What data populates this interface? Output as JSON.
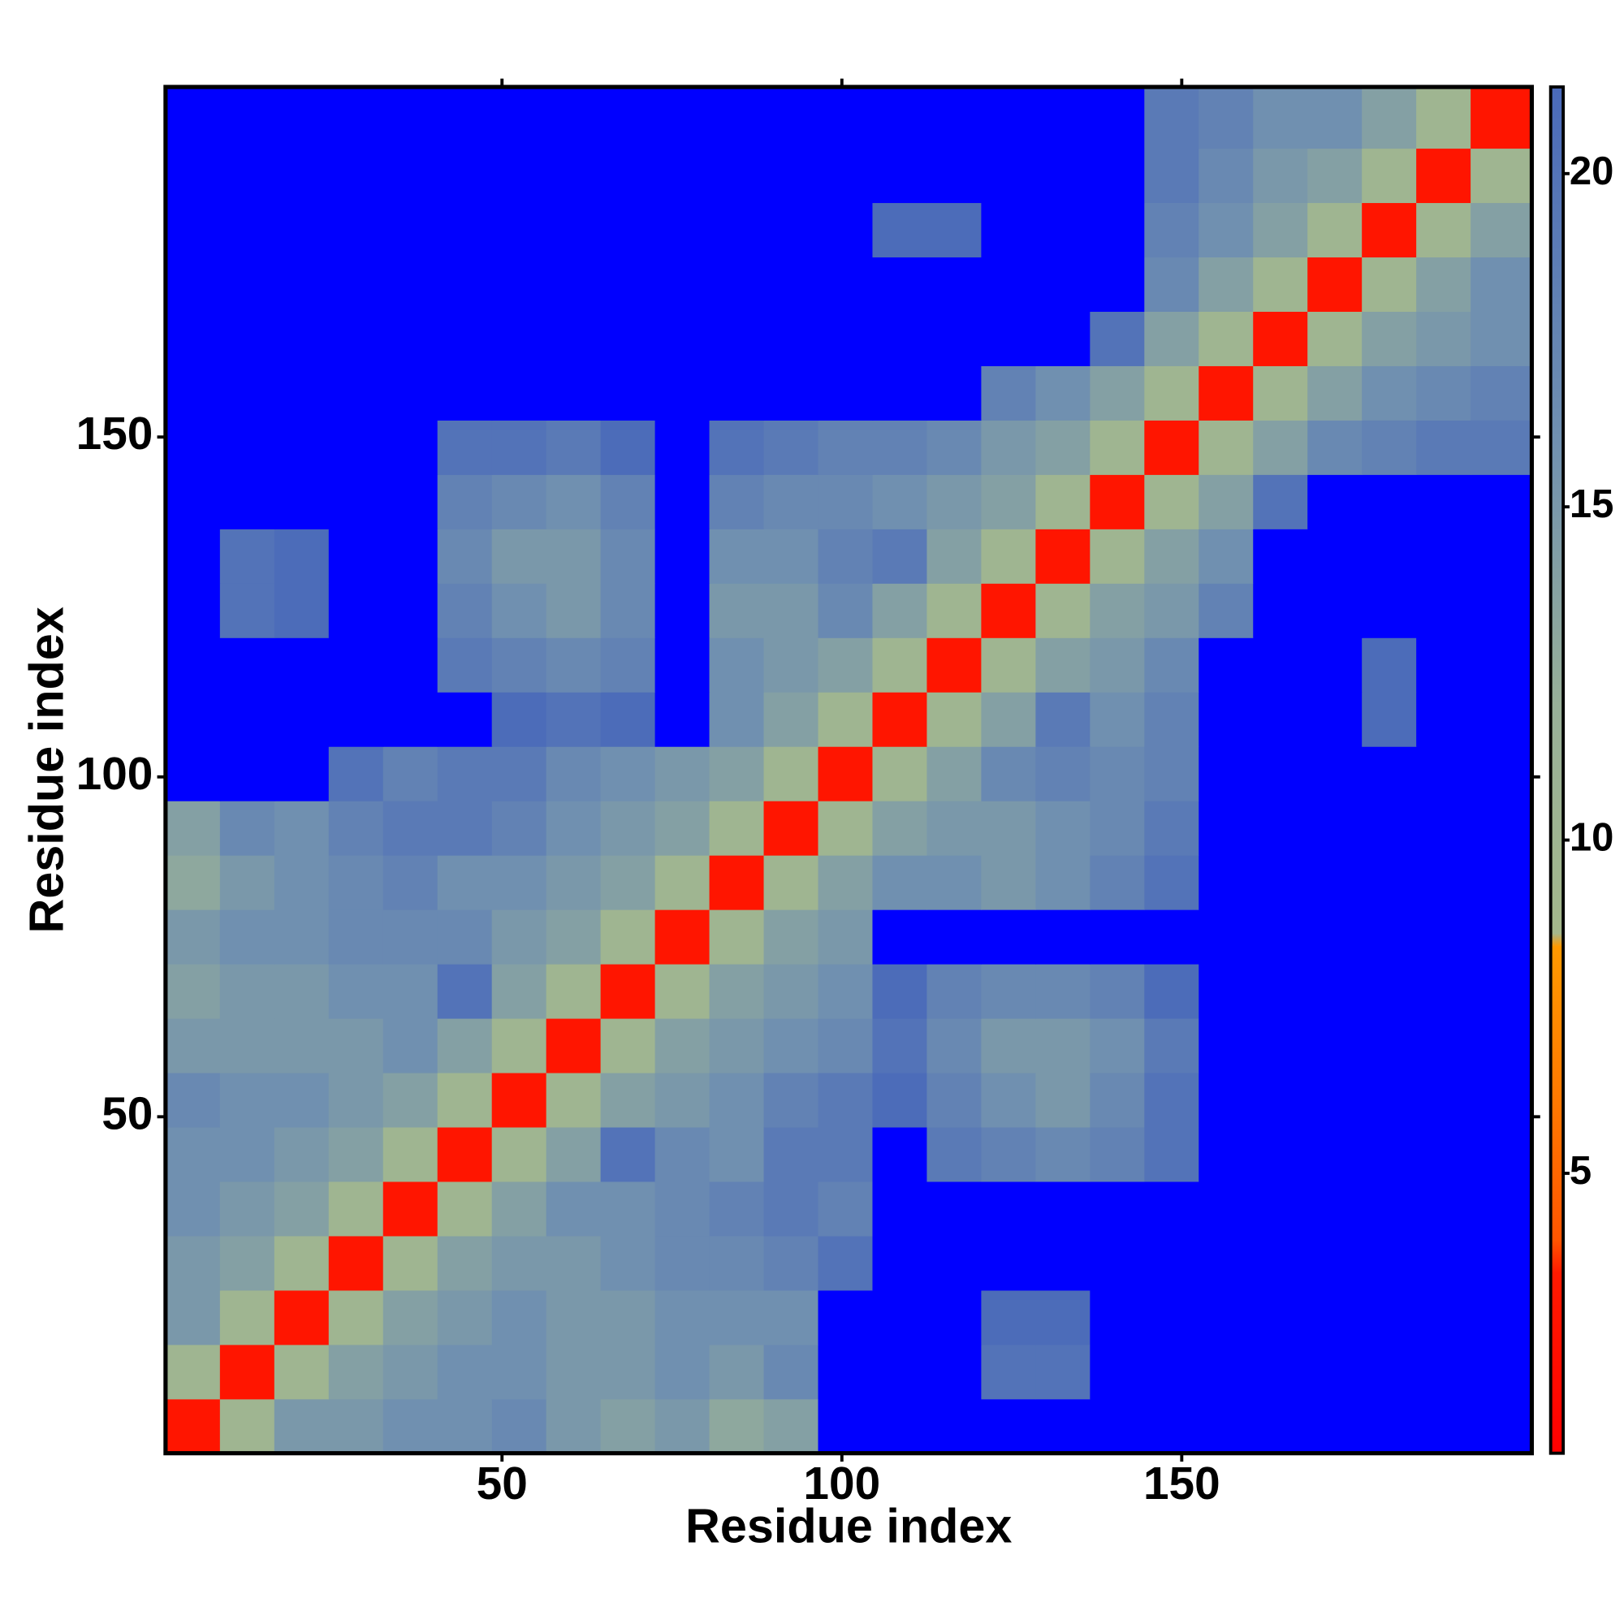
{
  "chart_data": {
    "type": "heatmap",
    "x_label": "Residue index",
    "y_label": "Residue index",
    "xlim": [
      0.5,
      201.5
    ],
    "ylim": [
      0.5,
      201.5
    ],
    "xticks": [
      50,
      100,
      150
    ],
    "yticks": [
      50,
      100,
      150
    ],
    "bin_edges": [
      0.5,
      8.5,
      16.5,
      24.5,
      32.5,
      40.5,
      48.5,
      56.5,
      64.5,
      72.5,
      80.5,
      88.5,
      96.5,
      104.5,
      112.5,
      120.5,
      128.5,
      136.5,
      144.5,
      152.5,
      160.5,
      168.5,
      176.5,
      184.5,
      192.5,
      201.5
    ],
    "values": [
      [
        3,
        10,
        15,
        15,
        16,
        16,
        17,
        15,
        14,
        15,
        13,
        14,
        25,
        25,
        25,
        25,
        25,
        25,
        25,
        25,
        25,
        25,
        25,
        25,
        25
      ],
      [
        10,
        3,
        10,
        14,
        15,
        16,
        16,
        15,
        15,
        16,
        15,
        17,
        25,
        25,
        25,
        20,
        20,
        25,
        25,
        25,
        25,
        25,
        25,
        25,
        25
      ],
      [
        15,
        10,
        3,
        10,
        14,
        15,
        16,
        15,
        15,
        16,
        16,
        16,
        25,
        25,
        25,
        21,
        21,
        25,
        25,
        25,
        25,
        25,
        25,
        25,
        25
      ],
      [
        15,
        14,
        10,
        3,
        10,
        14,
        15,
        15,
        16,
        17,
        17,
        18,
        20,
        25,
        25,
        25,
        25,
        25,
        25,
        25,
        25,
        25,
        25,
        25,
        25
      ],
      [
        16,
        15,
        14,
        10,
        3,
        10,
        14,
        16,
        16,
        17,
        18,
        19,
        18,
        25,
        25,
        25,
        25,
        25,
        25,
        25,
        25,
        25,
        25,
        25,
        25
      ],
      [
        16,
        16,
        15,
        14,
        10,
        3,
        10,
        14,
        20,
        17,
        16,
        19,
        19,
        22,
        19,
        18,
        17,
        18,
        20,
        25,
        25,
        25,
        25,
        25,
        25
      ],
      [
        17,
        16,
        16,
        15,
        14,
        10,
        3,
        10,
        14,
        15,
        16,
        18,
        19,
        21,
        18,
        16,
        15,
        17,
        20,
        25,
        25,
        25,
        25,
        25,
        25
      ],
      [
        15,
        15,
        15,
        15,
        16,
        14,
        10,
        3,
        10,
        14,
        15,
        16,
        17,
        20,
        17,
        15,
        15,
        16,
        19,
        25,
        25,
        25,
        25,
        25,
        25
      ],
      [
        14,
        15,
        15,
        16,
        16,
        20,
        14,
        10,
        3,
        10,
        14,
        15,
        16,
        21,
        18,
        17,
        17,
        18,
        21,
        25,
        25,
        25,
        25,
        25,
        25
      ],
      [
        15,
        16,
        16,
        17,
        17,
        17,
        15,
        14,
        10,
        3,
        10,
        14,
        15,
        25,
        22,
        22,
        25,
        25,
        25,
        25,
        25,
        25,
        25,
        25,
        25
      ],
      [
        13,
        15,
        16,
        17,
        18,
        16,
        16,
        15,
        14,
        10,
        3,
        10,
        14,
        16,
        16,
        15,
        16,
        18,
        20,
        25,
        25,
        25,
        25,
        25,
        25
      ],
      [
        14,
        17,
        16,
        18,
        19,
        19,
        18,
        16,
        15,
        14,
        10,
        3,
        10,
        14,
        15,
        15,
        16,
        17,
        19,
        25,
        25,
        25,
        25,
        25,
        25
      ],
      [
        25,
        25,
        25,
        20,
        18,
        19,
        19,
        17,
        16,
        15,
        14,
        10,
        3,
        10,
        14,
        17,
        18,
        17,
        18,
        25,
        25,
        25,
        25,
        25,
        25
      ],
      [
        25,
        25,
        25,
        25,
        25,
        22,
        21,
        20,
        21,
        25,
        16,
        14,
        10,
        3,
        10,
        14,
        19,
        16,
        18,
        25,
        25,
        25,
        21,
        25,
        25
      ],
      [
        25,
        25,
        25,
        25,
        25,
        19,
        18,
        17,
        18,
        22,
        16,
        15,
        14,
        10,
        3,
        10,
        14,
        15,
        17,
        25,
        25,
        25,
        21,
        25,
        25
      ],
      [
        25,
        20,
        21,
        25,
        25,
        18,
        16,
        15,
        17,
        22,
        15,
        15,
        17,
        14,
        10,
        3,
        10,
        14,
        15,
        18,
        25,
        25,
        25,
        25,
        25
      ],
      [
        25,
        20,
        21,
        25,
        25,
        17,
        15,
        15,
        17,
        25,
        16,
        16,
        18,
        19,
        14,
        10,
        3,
        10,
        14,
        16,
        25,
        25,
        25,
        25,
        25
      ],
      [
        25,
        25,
        25,
        25,
        25,
        18,
        17,
        16,
        18,
        25,
        18,
        17,
        17,
        16,
        15,
        14,
        10,
        3,
        10,
        14,
        20,
        25,
        25,
        25,
        25
      ],
      [
        25,
        25,
        25,
        25,
        25,
        20,
        20,
        19,
        21,
        25,
        20,
        19,
        18,
        18,
        17,
        15,
        14,
        10,
        3,
        10,
        14,
        17,
        18,
        19,
        19
      ],
      [
        25,
        25,
        25,
        25,
        25,
        25,
        25,
        25,
        25,
        25,
        25,
        25,
        25,
        25,
        25,
        18,
        16,
        14,
        10,
        3,
        10,
        14,
        16,
        17,
        18
      ],
      [
        25,
        25,
        25,
        25,
        25,
        25,
        25,
        25,
        25,
        25,
        25,
        25,
        25,
        25,
        25,
        25,
        25,
        20,
        14,
        10,
        3,
        10,
        14,
        15,
        16
      ],
      [
        25,
        25,
        25,
        25,
        25,
        25,
        25,
        25,
        25,
        25,
        25,
        25,
        25,
        25,
        25,
        25,
        25,
        25,
        17,
        14,
        10,
        3,
        10,
        14,
        16
      ],
      [
        25,
        25,
        25,
        25,
        25,
        25,
        25,
        25,
        25,
        25,
        25,
        25,
        25,
        21,
        21,
        25,
        25,
        25,
        18,
        16,
        14,
        10,
        3,
        10,
        14
      ],
      [
        25,
        25,
        25,
        25,
        25,
        25,
        25,
        25,
        25,
        25,
        25,
        25,
        25,
        25,
        25,
        25,
        25,
        25,
        19,
        17,
        15,
        14,
        10,
        3,
        10
      ],
      [
        25,
        25,
        25,
        25,
        25,
        25,
        25,
        25,
        25,
        25,
        25,
        25,
        25,
        25,
        25,
        25,
        25,
        25,
        19,
        18,
        16,
        16,
        14,
        10,
        3
      ]
    ],
    "colorscale": [
      [
        0.8,
        "#ff0000"
      ],
      [
        3.5,
        "#ff1a00"
      ],
      [
        4,
        "#ff5500"
      ],
      [
        6,
        "#ff7700"
      ],
      [
        8.4,
        "#ff9900"
      ],
      [
        8.6,
        "#a4b88c"
      ],
      [
        12,
        "#98b098"
      ],
      [
        16,
        "#7090b0"
      ],
      [
        21.3,
        "#4a6aba"
      ]
    ],
    "over_color": "#0000ff",
    "colorbar_lim": [
      0.8,
      21.3
    ],
    "colorbar_ticks": [
      5,
      10,
      15,
      20
    ]
  }
}
